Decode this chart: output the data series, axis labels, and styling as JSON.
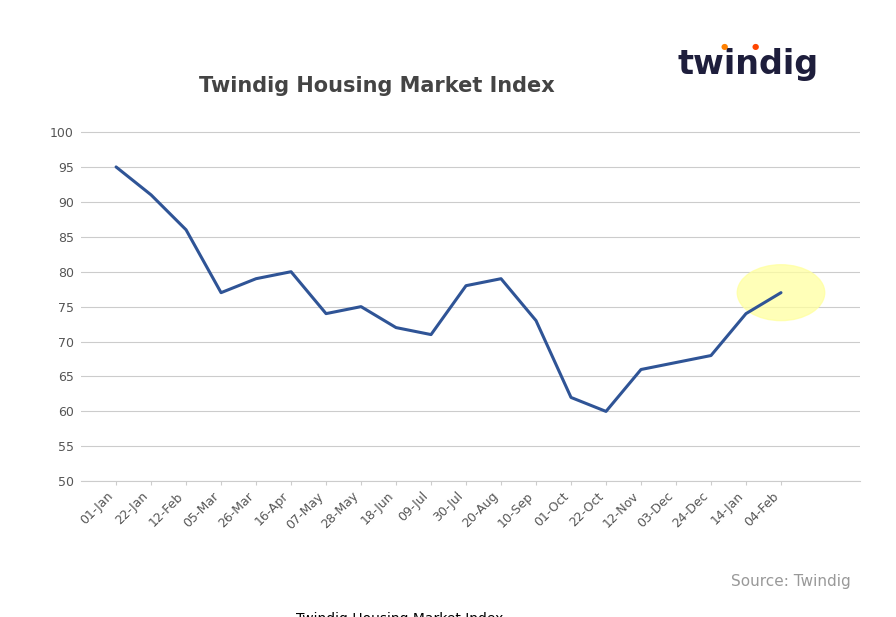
{
  "title": "Twindig Housing Market Index",
  "source_text": "Source: Twindig",
  "legend_label": "Twindig Housing Market Index",
  "line_color": "#2F5496",
  "line_width": 2.2,
  "highlight_color": "#FFFFA0",
  "highlight_alpha": 0.75,
  "ylim": [
    50,
    103
  ],
  "yticks": [
    50,
    55,
    60,
    65,
    70,
    75,
    80,
    85,
    90,
    95,
    100
  ],
  "background_color": "#ffffff",
  "grid_color": "#cccccc",
  "x_labels": [
    "01-Jan",
    "22-Jan",
    "12-Feb",
    "05-Mar",
    "26-Mar",
    "16-Apr",
    "07-May",
    "28-May",
    "18-Jun",
    "09-Jul",
    "30-Jul",
    "20-Aug",
    "10-Sep",
    "01-Oct",
    "22-Oct",
    "12-Nov",
    "03-Dec",
    "24-Dec",
    "14-Jan",
    "04-Feb"
  ],
  "y_values": [
    95,
    91,
    86,
    77,
    79,
    80,
    74,
    75,
    72,
    71,
    78,
    79,
    73,
    62,
    60,
    66,
    67,
    68,
    74,
    77
  ],
  "twindig_logo_text": "twindig",
  "twindig_color": "#1e1e3c",
  "dot1_color": "#FF8C00",
  "dot2_color": "#FF4500",
  "title_fontsize": 15,
  "tick_fontsize": 9,
  "source_fontsize": 11
}
